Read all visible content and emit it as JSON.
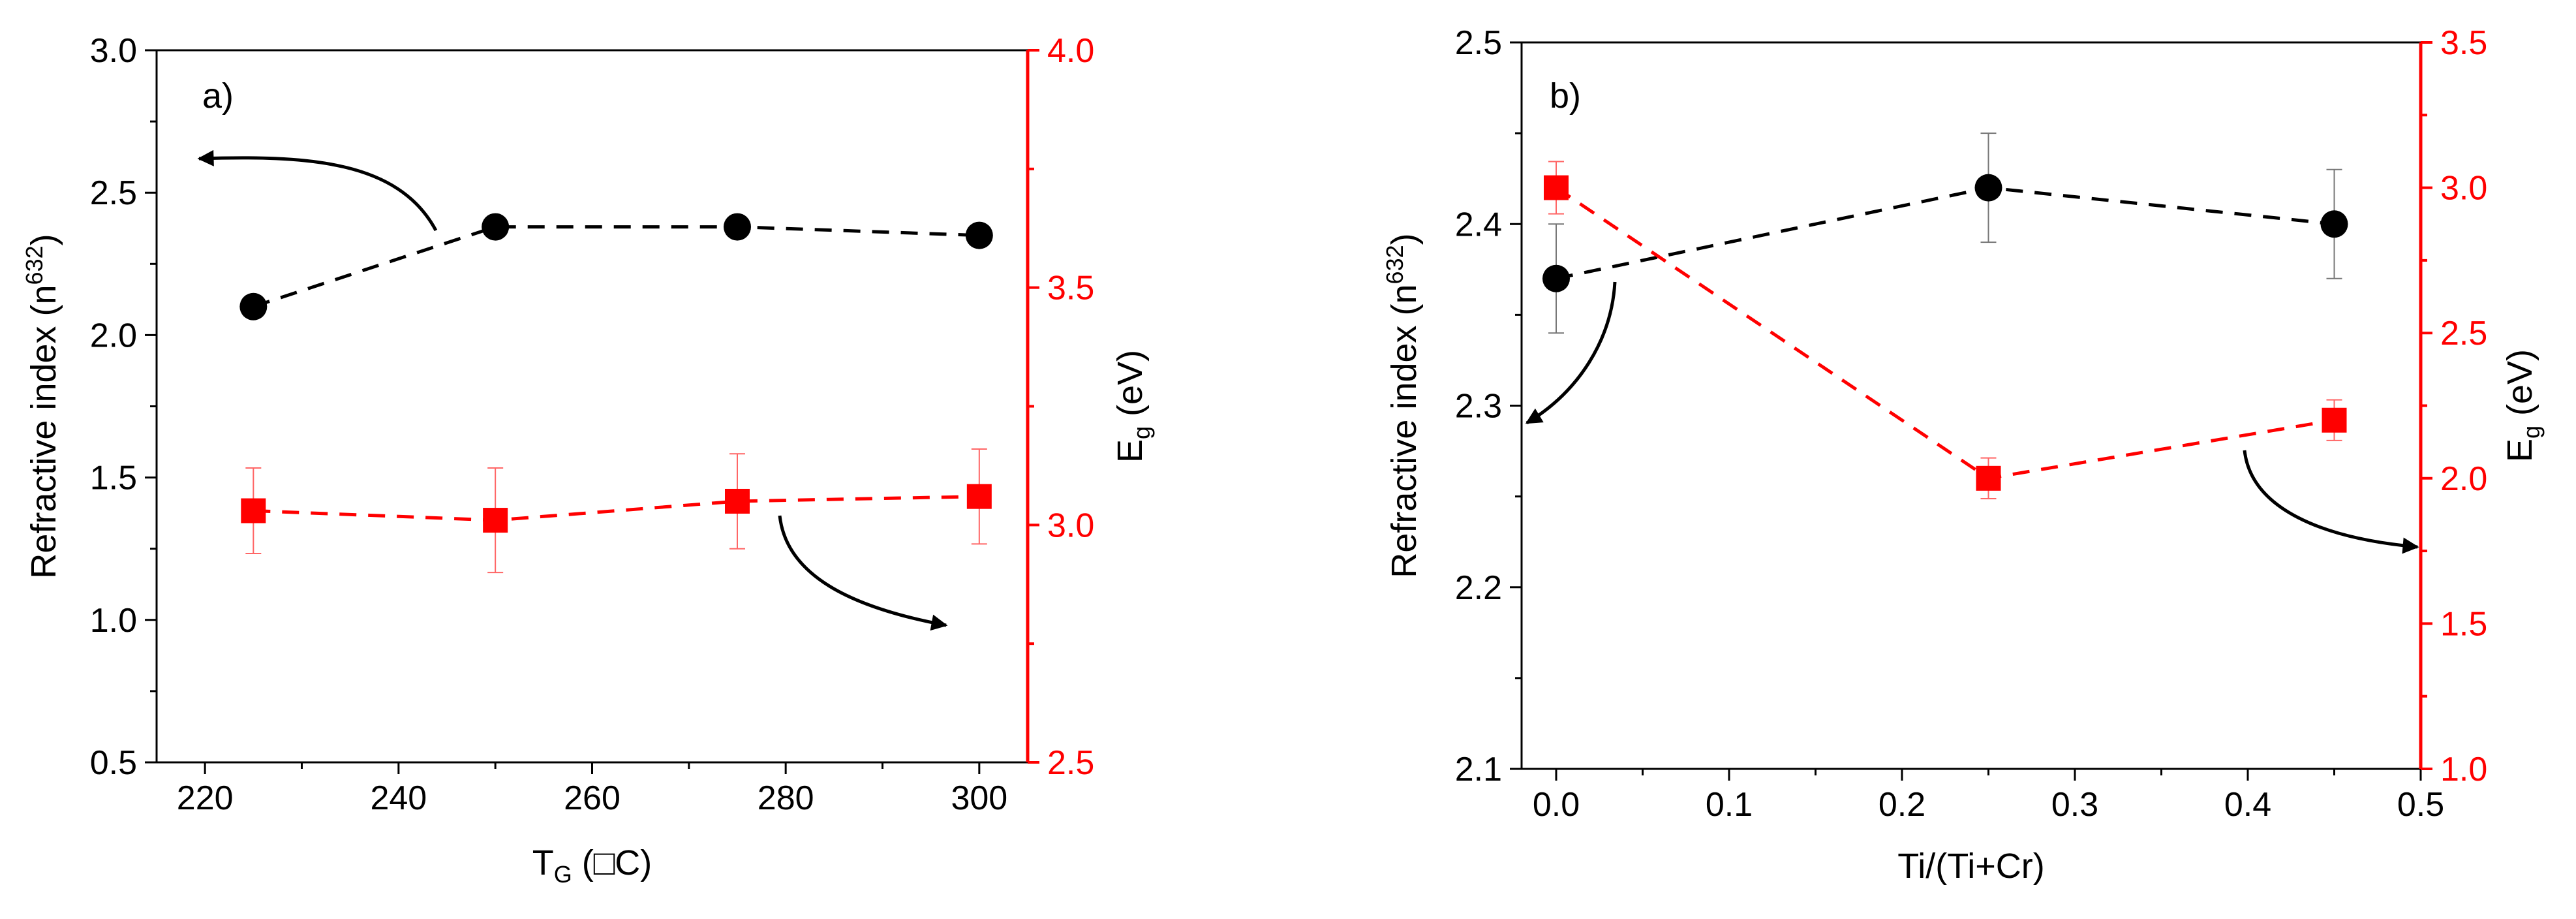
{
  "colors": {
    "left_axis": "#000000",
    "right_axis": "#ff0000"
  },
  "chart_data": [
    {
      "id": "a",
      "type": "line",
      "panel_label": "a)",
      "xlabel": {
        "main": "T",
        "sub": "G",
        "rest": " (□C)"
      },
      "ylabel_left": {
        "main": "Refractive index (n",
        "sup": "632",
        "rest": ")"
      },
      "ylabel_right": {
        "main": "E",
        "sub": "g",
        "rest": " (eV)"
      },
      "xlim": [
        215,
        305
      ],
      "ylim_left": [
        0.5,
        3.0
      ],
      "ylim_right": [
        2.5,
        4.0
      ],
      "x_ticks": [
        220,
        240,
        260,
        280,
        300
      ],
      "x_tick_labels": [
        "220",
        "240",
        "260",
        "280",
        "300"
      ],
      "y_left_ticks": [
        0.5,
        1.0,
        1.5,
        2.0,
        2.5,
        3.0
      ],
      "y_left_tick_labels": [
        "0.5",
        "1.0",
        "1.5",
        "2.0",
        "2.5",
        "3.0"
      ],
      "y_right_ticks": [
        2.5,
        3.0,
        3.5,
        4.0
      ],
      "y_right_tick_labels": [
        "2.5",
        "3.0",
        "3.5",
        "4.0"
      ],
      "series": [
        {
          "name": "Refractive index",
          "axis": "left",
          "marker": "circle",
          "color": "#000000",
          "x": [
            225,
            250,
            275,
            300
          ],
          "y": [
            2.1,
            2.38,
            2.38,
            2.35
          ],
          "err": [
            0,
            0,
            0,
            0
          ]
        },
        {
          "name": "Eg",
          "axis": "right",
          "marker": "square",
          "color": "#ff0000",
          "x": [
            225,
            250,
            275,
            300
          ],
          "y": [
            3.03,
            3.01,
            3.05,
            3.06
          ],
          "err": [
            0.09,
            0.11,
            0.1,
            0.1
          ]
        }
      ]
    },
    {
      "id": "b",
      "type": "line",
      "panel_label": "b)",
      "xlabel": {
        "main": "Ti/(Ti+Cr)",
        "sub": "",
        "rest": ""
      },
      "ylabel_left": {
        "main": "Refractive index (n",
        "sup": "632",
        "rest": ")"
      },
      "ylabel_right": {
        "main": "E",
        "sub": "g",
        "rest": " (eV)"
      },
      "xlim": [
        -0.02,
        0.5
      ],
      "ylim_left": [
        2.1,
        2.5
      ],
      "ylim_right": [
        1.0,
        3.5
      ],
      "x_ticks": [
        0.0,
        0.1,
        0.2,
        0.3,
        0.4,
        0.5
      ],
      "x_tick_labels": [
        "0.0",
        "0.1",
        "0.2",
        "0.3",
        "0.4",
        "0.5"
      ],
      "y_left_ticks": [
        2.1,
        2.2,
        2.3,
        2.4,
        2.5
      ],
      "y_left_tick_labels": [
        "2.1",
        "2.2",
        "2.3",
        "2.4",
        "2.5"
      ],
      "y_right_ticks": [
        1.0,
        1.5,
        2.0,
        2.5,
        3.0,
        3.5
      ],
      "y_right_tick_labels": [
        "1.0",
        "1.5",
        "2.0",
        "2.5",
        "3.0",
        "3.5"
      ],
      "series": [
        {
          "name": "Refractive index",
          "axis": "left",
          "marker": "circle",
          "color": "#000000",
          "x": [
            0.0,
            0.25,
            0.45
          ],
          "y": [
            2.37,
            2.42,
            2.4
          ],
          "err": [
            0.03,
            0.03,
            0.03
          ]
        },
        {
          "name": "Eg",
          "axis": "right",
          "marker": "square",
          "color": "#ff0000",
          "x": [
            0.0,
            0.25,
            0.45
          ],
          "y": [
            3.0,
            2.0,
            2.2
          ],
          "err": [
            0.09,
            0.07,
            0.07
          ]
        }
      ]
    }
  ]
}
